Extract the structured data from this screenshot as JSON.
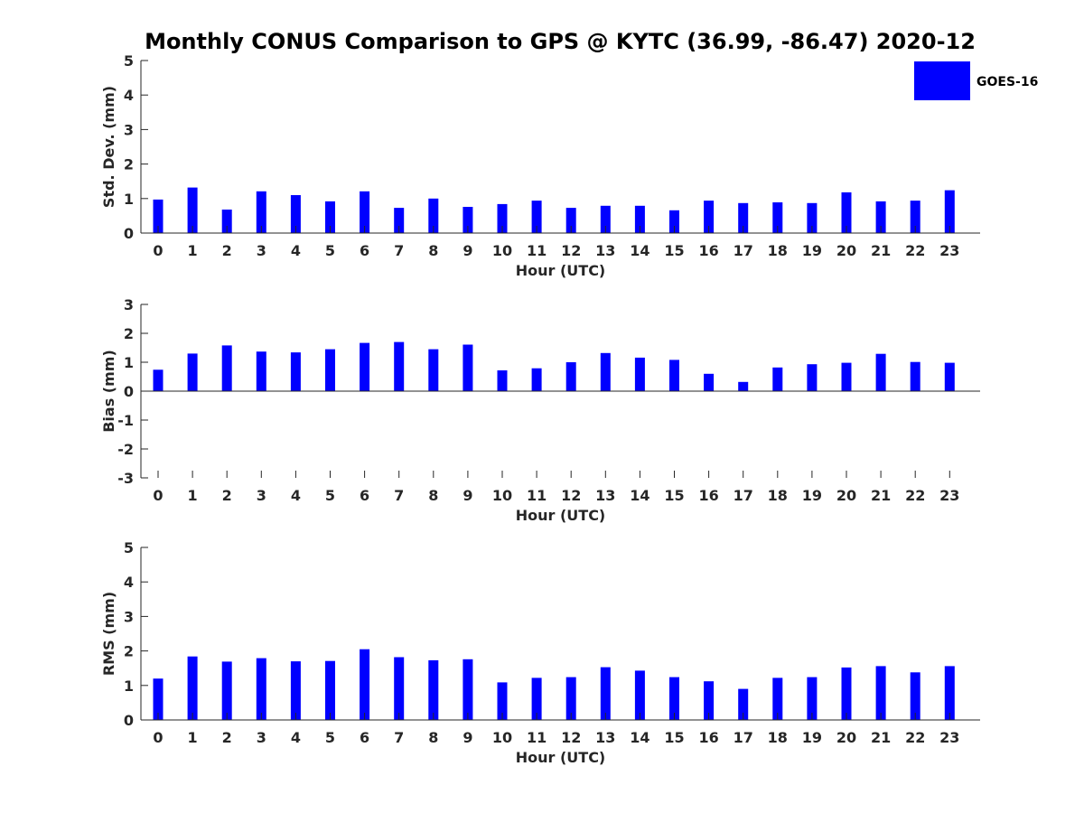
{
  "title": "Monthly CONUS Comparison to GPS @ KYTC (36.99, -86.47) 2020-12",
  "legend": {
    "label": "GOES-16",
    "color": "#0000ff",
    "placement": "top-right"
  },
  "chart_data": [
    {
      "type": "bar",
      "xlabel": "Hour (UTC)",
      "ylabel": "Std. Dev. (mm)",
      "ylim": [
        0,
        5
      ],
      "yticks": [
        "0",
        "1",
        "2",
        "3",
        "4",
        "5"
      ],
      "categories": [
        "0",
        "1",
        "2",
        "3",
        "4",
        "5",
        "6",
        "7",
        "8",
        "9",
        "10",
        "11",
        "12",
        "13",
        "14",
        "15",
        "16",
        "17",
        "18",
        "19",
        "20",
        "21",
        "22",
        "23"
      ],
      "series": [
        {
          "name": "GOES-16",
          "values": [
            0.97,
            1.32,
            0.68,
            1.21,
            1.1,
            0.92,
            1.21,
            0.73,
            1.0,
            0.76,
            0.84,
            0.94,
            0.73,
            0.79,
            0.79,
            0.66,
            0.94,
            0.87,
            0.89,
            0.87,
            1.18,
            0.92,
            0.94,
            1.24
          ]
        }
      ]
    },
    {
      "type": "bar",
      "xlabel": "Hour (UTC)",
      "ylabel": "Bias (mm)",
      "ylim": [
        -3,
        3
      ],
      "yticks": [
        "-3",
        "-2",
        "-1",
        "0",
        "1",
        "2",
        "3"
      ],
      "categories": [
        "0",
        "1",
        "2",
        "3",
        "4",
        "5",
        "6",
        "7",
        "8",
        "9",
        "10",
        "11",
        "12",
        "13",
        "14",
        "15",
        "16",
        "17",
        "18",
        "19",
        "20",
        "21",
        "22",
        "23"
      ],
      "series": [
        {
          "name": "GOES-16",
          "values": [
            0.74,
            1.3,
            1.58,
            1.37,
            1.34,
            1.45,
            1.67,
            1.7,
            1.45,
            1.61,
            0.72,
            0.79,
            1.0,
            1.32,
            1.16,
            1.08,
            0.6,
            0.32,
            0.82,
            0.93,
            0.98,
            1.29,
            1.01,
            0.98
          ]
        }
      ]
    },
    {
      "type": "bar",
      "xlabel": "Hour (UTC)",
      "ylabel": "RMS (mm)",
      "ylim": [
        0,
        5
      ],
      "yticks": [
        "0",
        "1",
        "2",
        "3",
        "4",
        "5"
      ],
      "categories": [
        "0",
        "1",
        "2",
        "3",
        "4",
        "5",
        "6",
        "7",
        "8",
        "9",
        "10",
        "11",
        "12",
        "13",
        "14",
        "15",
        "16",
        "17",
        "18",
        "19",
        "20",
        "21",
        "22",
        "23"
      ],
      "series": [
        {
          "name": "GOES-16",
          "values": [
            1.2,
            1.84,
            1.69,
            1.79,
            1.7,
            1.71,
            2.05,
            1.82,
            1.73,
            1.76,
            1.09,
            1.22,
            1.24,
            1.53,
            1.43,
            1.24,
            1.12,
            0.9,
            1.22,
            1.24,
            1.52,
            1.56,
            1.38,
            1.56
          ]
        }
      ]
    }
  ]
}
